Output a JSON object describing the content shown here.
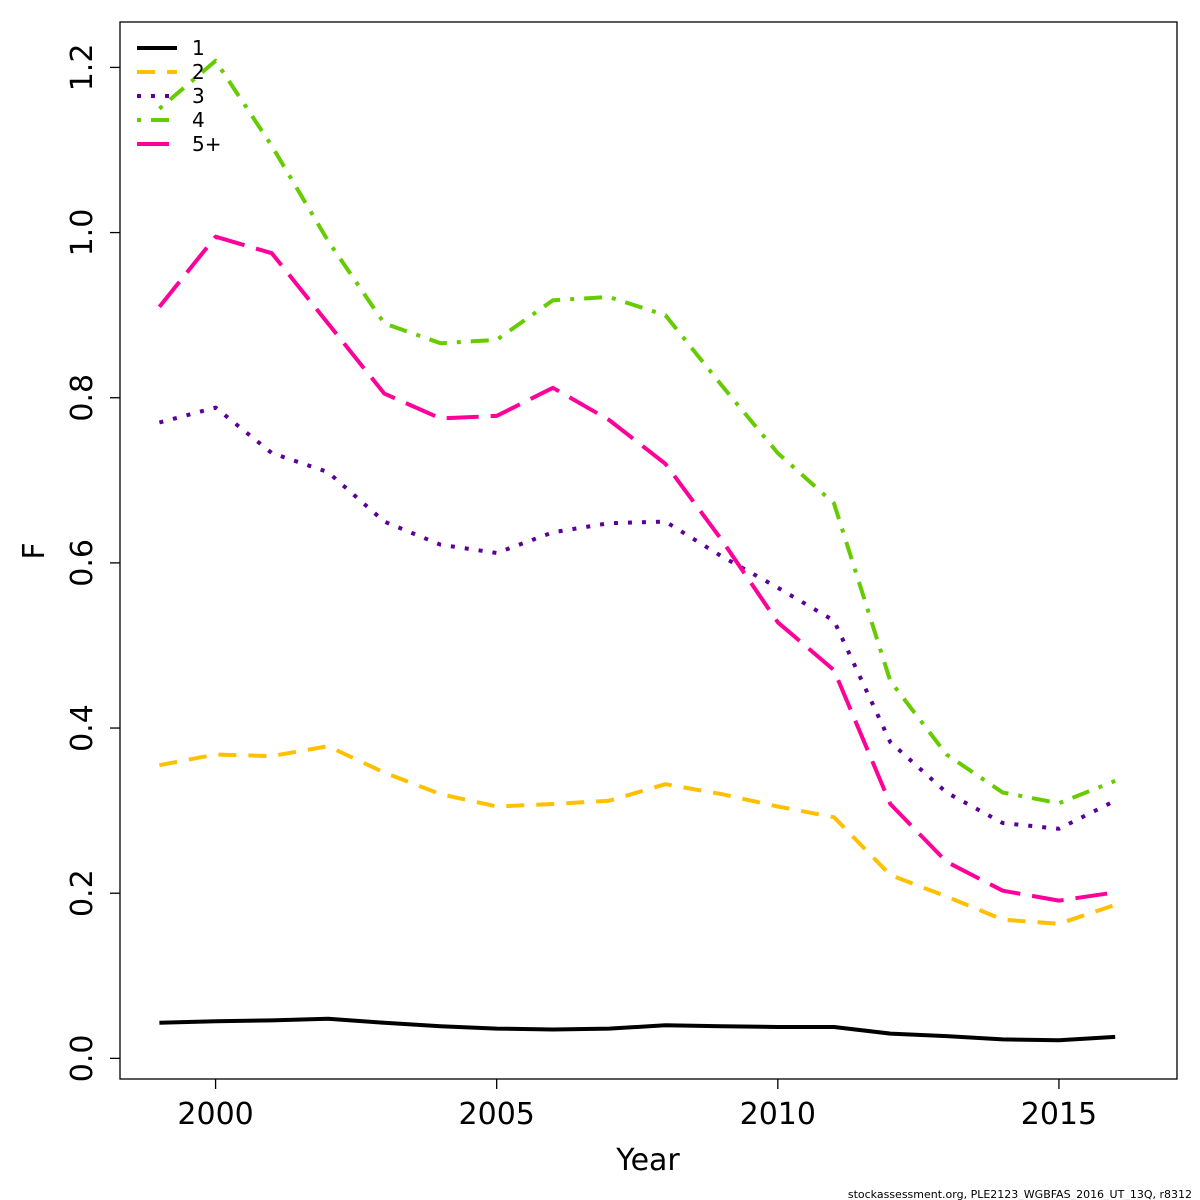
{
  "chart_data": {
    "type": "line",
    "xlabel": "Year",
    "ylabel": "F",
    "xlim": [
      1998.3,
      2017.1
    ],
    "ylim": [
      -0.025,
      1.255
    ],
    "xticks": [
      2000,
      2005,
      2010,
      2015
    ],
    "yticks": [
      0.0,
      0.2,
      0.4,
      0.6,
      0.8,
      1.0,
      1.2
    ],
    "ytick_labels": [
      "0.0",
      "0.2",
      "0.4",
      "0.6",
      "0.8",
      "1.0",
      "1.2"
    ],
    "grid": false,
    "legend_position": "top-left",
    "x": [
      1999,
      2000,
      2001,
      2002,
      2003,
      2004,
      2005,
      2006,
      2007,
      2008,
      2009,
      2010,
      2011,
      2012,
      2013,
      2014,
      2015,
      2016
    ],
    "series": [
      {
        "name": "1",
        "color": "#000000",
        "dash": "solid",
        "values": [
          0.043,
          0.045,
          0.046,
          0.048,
          0.043,
          0.039,
          0.036,
          0.035,
          0.036,
          0.04,
          0.039,
          0.038,
          0.038,
          0.03,
          0.027,
          0.023,
          0.022,
          0.026
        ]
      },
      {
        "name": "2",
        "color": "#FFC000",
        "dash": "dashed",
        "values": [
          0.355,
          0.368,
          0.366,
          0.378,
          0.346,
          0.32,
          0.305,
          0.308,
          0.312,
          0.332,
          0.32,
          0.305,
          0.292,
          0.222,
          0.196,
          0.168,
          0.163,
          0.186
        ]
      },
      {
        "name": "3",
        "color": "#5B0099",
        "dash": "dotted",
        "values": [
          0.77,
          0.788,
          0.733,
          0.71,
          0.65,
          0.622,
          0.612,
          0.637,
          0.648,
          0.65,
          0.608,
          0.57,
          0.53,
          0.383,
          0.322,
          0.285,
          0.278,
          0.312
        ]
      },
      {
        "name": "4",
        "color": "#66CC00",
        "dash": "dotdash",
        "values": [
          1.15,
          1.208,
          1.105,
          0.99,
          0.89,
          0.866,
          0.87,
          0.918,
          0.922,
          0.9,
          0.815,
          0.733,
          0.672,
          0.457,
          0.368,
          0.322,
          0.309,
          0.336
        ]
      },
      {
        "name": "5+",
        "color": "#FF0099",
        "dash": "longdash",
        "values": [
          0.91,
          0.995,
          0.975,
          0.89,
          0.805,
          0.775,
          0.778,
          0.812,
          0.773,
          0.72,
          0.628,
          0.528,
          0.47,
          0.308,
          0.238,
          0.203,
          0.191,
          0.201
        ]
      }
    ]
  },
  "credit": "stockassessment.org, PLE2123_WGBFAS_2016_UT_13Q, r8312"
}
